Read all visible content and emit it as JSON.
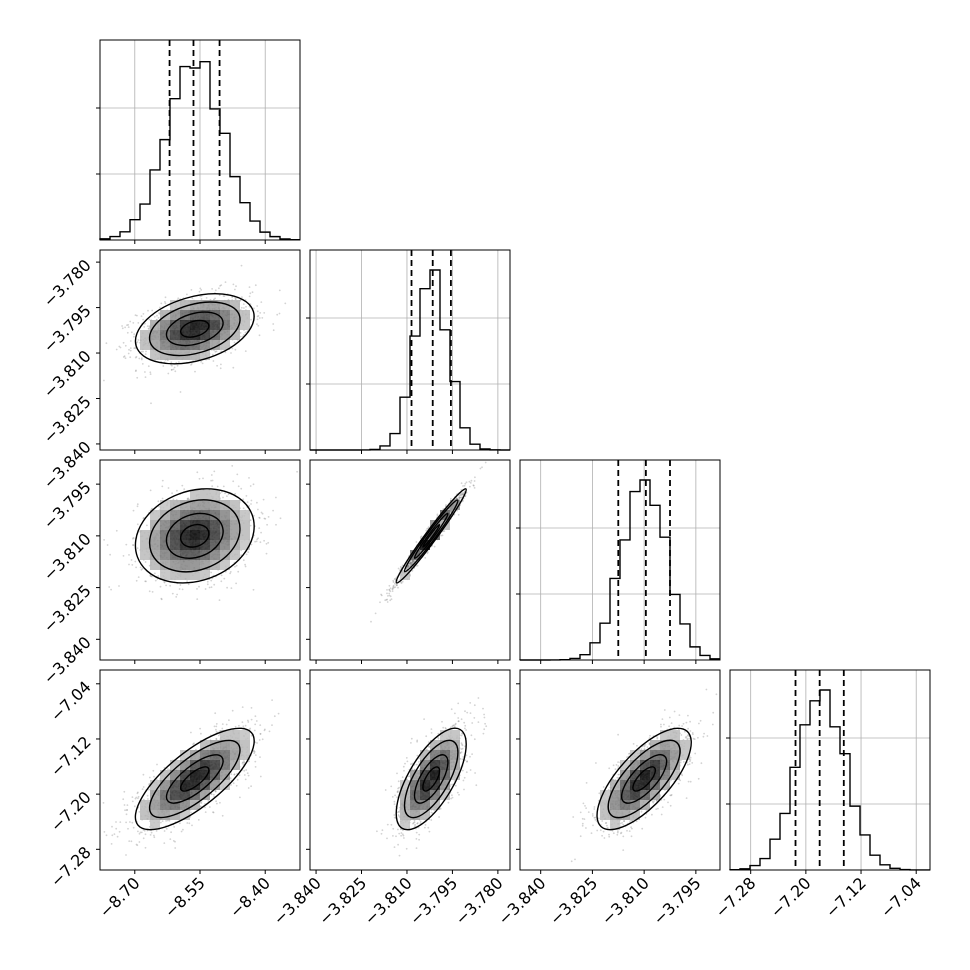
{
  "chart_data": {
    "type": "corner",
    "grid": true,
    "colors": {
      "frame": "#000000",
      "grid": "#b0b0b0",
      "sample": "#808080",
      "contour": "#000000"
    },
    "params": [
      {
        "range": [
          -8.78,
          -8.32
        ],
        "hist_ticks": [
          -8.7,
          -8.55,
          -8.4
        ],
        "label_ticks": [
          "−8.70",
          "−8.55",
          "−8.40"
        ],
        "quantiles": [
          -8.62,
          -8.565,
          -8.505
        ],
        "mean": -8.562,
        "sd": 0.065
      },
      {
        "range": [
          -3.842,
          -3.776
        ],
        "hist_ticks": [
          -3.84,
          -3.825,
          -3.81,
          -3.795,
          -3.78
        ],
        "label_ticks": [
          "−3.840",
          "−3.825",
          "−3.810",
          "−3.795",
          "−3.780"
        ],
        "quantiles": [
          -3.8085,
          -3.8015,
          -3.7955
        ],
        "mean": -3.802,
        "sd": 0.0055
      },
      {
        "range": [
          -3.846,
          -3.788
        ],
        "hist_ticks": [
          -3.84,
          -3.825,
          -3.81,
          -3.795
        ],
        "label_ticks": [
          "−3.840",
          "−3.825",
          "−3.810",
          "−3.795"
        ],
        "quantiles": [
          -3.8175,
          -3.8095,
          -3.8025
        ],
        "mean": -3.81,
        "sd": 0.0065
      },
      {
        "range": [
          -7.31,
          -7.02
        ],
        "hist_ticks": [
          -7.28,
          -7.2,
          -7.12,
          -7.04
        ],
        "label_ticks": [
          "−7.28",
          "−7.20",
          "−7.12",
          "−7.04"
        ],
        "quantiles": [
          -7.215,
          -7.18,
          -7.145
        ],
        "mean": -7.178,
        "sd": 0.035
      }
    ],
    "y_axis_labels": {
      "row1": [
        "−3.780",
        "−3.795",
        "−3.810",
        "−3.825",
        "−3.840"
      ],
      "row2": [
        "−3.795",
        "−3.810",
        "−3.825",
        "−3.840"
      ],
      "row3": [
        "−7.04",
        "−7.12",
        "−7.20",
        "−7.28"
      ]
    },
    "correlations": {
      "1-0": 0.35,
      "2-0": 0.2,
      "2-1": 0.98,
      "3-0": 0.75,
      "3-1": 0.68,
      "3-2": 0.72
    }
  }
}
